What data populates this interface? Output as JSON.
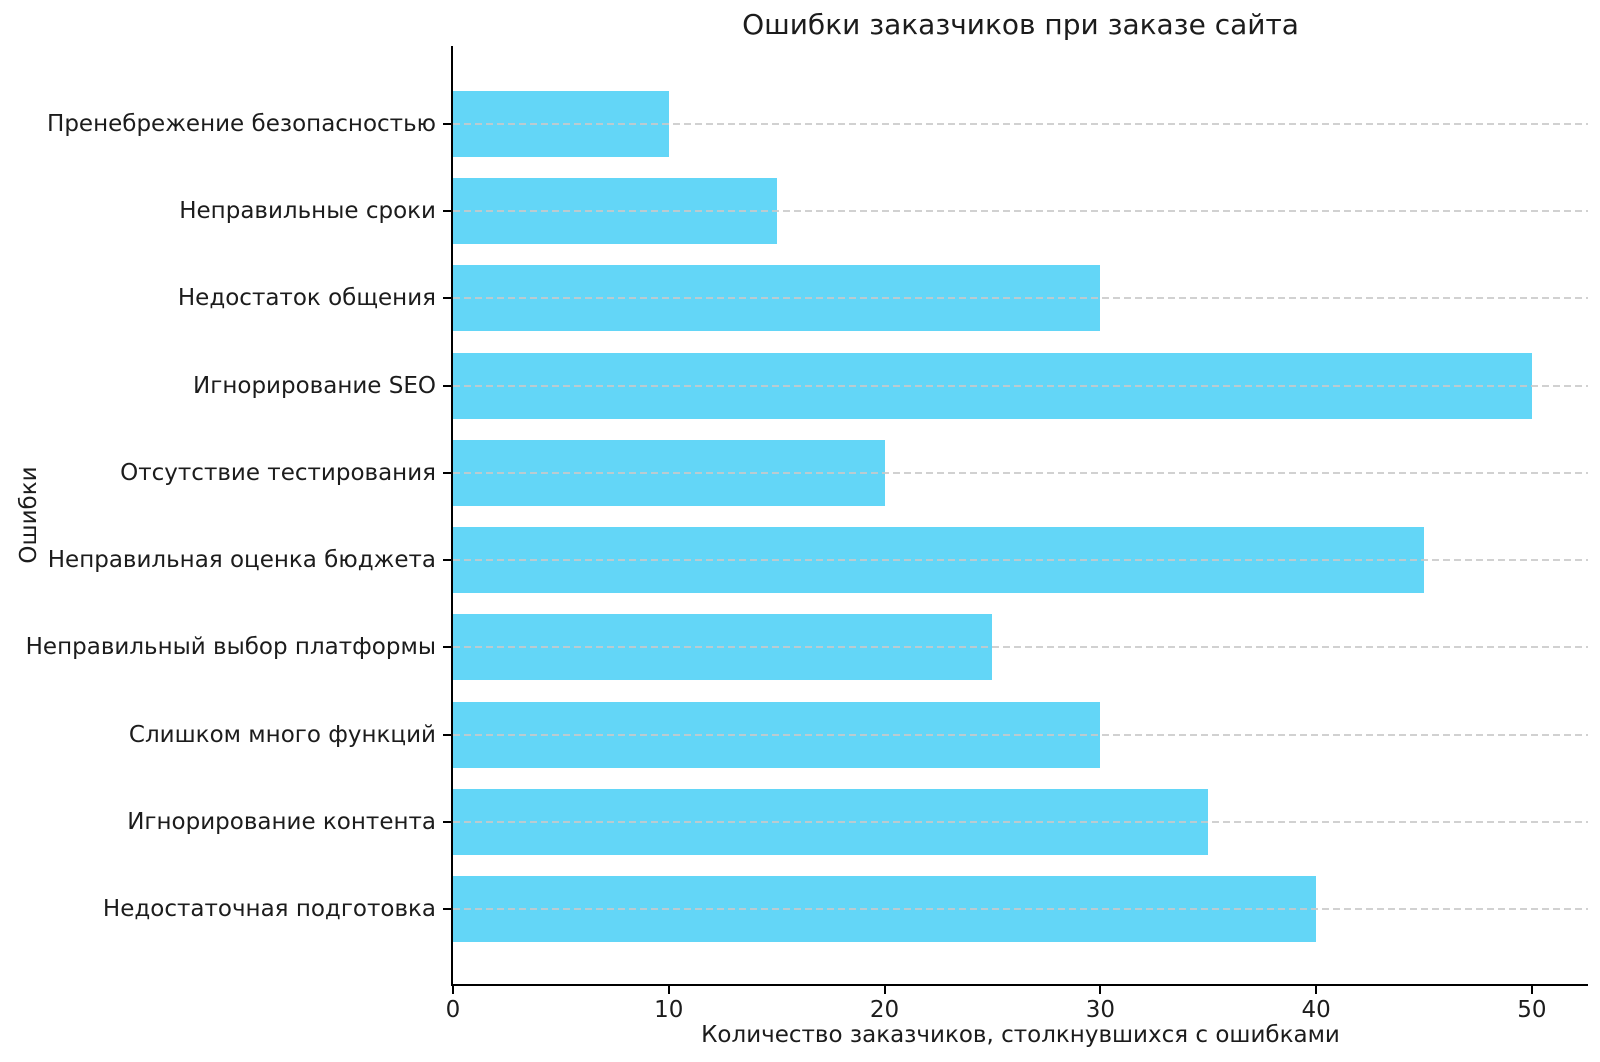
{
  "chart_data": {
    "type": "bar",
    "orientation": "horizontal",
    "title": "Ошибки заказчиков при заказе сайта",
    "xlabel": "Количество заказчиков, столкнувшихся с ошибками",
    "ylabel": "Ошибки",
    "categories": [
      "Пренебрежение безопасностью",
      "Неправильные сроки",
      "Недостаток общения",
      "Игнорирование SEO",
      "Отсутствие тестирования",
      "Неправильная оценка бюджета",
      "Неправильный выбор платформы",
      "Слишком много функций",
      "Игнорирование контента",
      "Недостаточная подготовка"
    ],
    "values": [
      10,
      15,
      30,
      50,
      20,
      45,
      25,
      30,
      35,
      40
    ],
    "xticks": [
      0,
      10,
      20,
      30,
      40,
      50
    ],
    "xlim": [
      0,
      52.6
    ],
    "grid": "horizontal dashed, one line per category, drawn over bars",
    "legend": "none",
    "bar_color": "#63d6f7",
    "grid_color": "#c9c9c9",
    "spine_color": "#000000",
    "text_color": "#1c1c1c"
  }
}
